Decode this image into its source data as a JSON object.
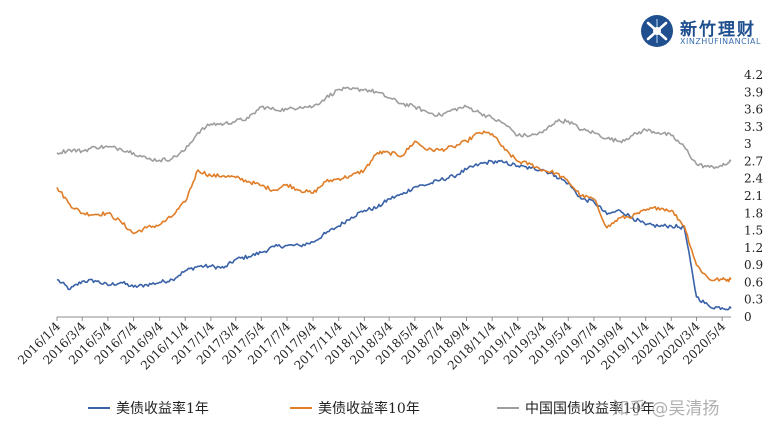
{
  "logo": {
    "name_cn": "新竹理财",
    "name_en": "XINZHUFINANCIAL"
  },
  "watermark": "知乎 @吴清扬",
  "chart_data": {
    "type": "line",
    "title": "",
    "xlabel": "",
    "ylabel": "",
    "ylim": [
      0,
      4.2
    ],
    "y_ticks": [
      "0",
      "0.3",
      "0.6",
      "0.9",
      "1.2",
      "1.5",
      "1.8",
      "2.1",
      "2.4",
      "2.7",
      "3",
      "3.3",
      "3.6",
      "3.9",
      "4.2"
    ],
    "y_axis_side": "right",
    "grid": false,
    "legend_position": "bottom",
    "x_ticks": [
      "2016/1/4",
      "2016/3/4",
      "2016/5/4",
      "2016/7/4",
      "2016/9/4",
      "2016/11/4",
      "2017/1/4",
      "2017/3/4",
      "2017/5/4",
      "2017/7/4",
      "2017/9/4",
      "2017/11/4",
      "2018/1/4",
      "2018/3/4",
      "2018/5/4",
      "2018/7/4",
      "2018/9/4",
      "2018/11/4",
      "2019/1/4",
      "2019/3/4",
      "2019/5/4",
      "2019/7/4",
      "2019/9/4",
      "2019/11/4",
      "2020/1/4",
      "2020/3/4",
      "2020/5/4"
    ],
    "x": [
      "2016/1/4",
      "2016/2/4",
      "2016/3/4",
      "2016/4/4",
      "2016/5/4",
      "2016/6/4",
      "2016/7/4",
      "2016/8/4",
      "2016/9/4",
      "2016/10/4",
      "2016/11/4",
      "2016/12/4",
      "2017/1/4",
      "2017/2/4",
      "2017/3/4",
      "2017/4/4",
      "2017/5/4",
      "2017/6/4",
      "2017/7/4",
      "2017/8/4",
      "2017/9/4",
      "2017/10/4",
      "2017/11/4",
      "2017/12/4",
      "2018/1/4",
      "2018/2/4",
      "2018/3/4",
      "2018/4/4",
      "2018/5/4",
      "2018/6/4",
      "2018/7/4",
      "2018/8/4",
      "2018/9/4",
      "2018/10/4",
      "2018/11/4",
      "2018/12/4",
      "2019/1/4",
      "2019/2/4",
      "2019/3/4",
      "2019/4/4",
      "2019/5/4",
      "2019/6/4",
      "2019/7/4",
      "2019/8/4",
      "2019/9/4",
      "2019/10/4",
      "2019/11/4",
      "2019/12/4",
      "2020/1/4",
      "2020/2/4",
      "2020/3/4",
      "2020/4/4",
      "2020/5/4",
      "2020/5/25"
    ],
    "series": [
      {
        "name": "美债收益率1年",
        "color": "#3a62a8",
        "values": [
          0.65,
          0.48,
          0.62,
          0.63,
          0.55,
          0.6,
          0.52,
          0.56,
          0.6,
          0.65,
          0.8,
          0.88,
          0.88,
          0.85,
          1.0,
          1.05,
          1.12,
          1.22,
          1.24,
          1.24,
          1.3,
          1.45,
          1.58,
          1.73,
          1.85,
          1.9,
          2.05,
          2.13,
          2.26,
          2.3,
          2.38,
          2.44,
          2.56,
          2.65,
          2.7,
          2.68,
          2.62,
          2.58,
          2.56,
          2.45,
          2.32,
          2.05,
          2.0,
          1.78,
          1.85,
          1.72,
          1.6,
          1.58,
          1.58,
          1.55,
          0.35,
          0.18,
          0.16,
          0.15
        ]
      },
      {
        "name": "美债收益率10年",
        "color": "#e07d27",
        "values": [
          2.25,
          1.95,
          1.8,
          1.78,
          1.8,
          1.65,
          1.45,
          1.55,
          1.6,
          1.75,
          2.0,
          2.55,
          2.45,
          2.45,
          2.42,
          2.35,
          2.28,
          2.2,
          2.3,
          2.2,
          2.15,
          2.35,
          2.4,
          2.45,
          2.55,
          2.85,
          2.85,
          2.8,
          3.05,
          2.9,
          2.9,
          2.95,
          3.05,
          3.2,
          3.18,
          2.9,
          2.7,
          2.65,
          2.55,
          2.5,
          2.35,
          2.1,
          2.05,
          1.55,
          1.72,
          1.75,
          1.85,
          1.9,
          1.85,
          1.58,
          0.9,
          0.65,
          0.65,
          0.65
        ]
      },
      {
        "name": "中国国债收益率10年",
        "color": "#9e9e9e",
        "values": [
          2.85,
          2.9,
          2.88,
          2.95,
          2.95,
          2.92,
          2.85,
          2.75,
          2.72,
          2.75,
          2.9,
          3.2,
          3.35,
          3.35,
          3.4,
          3.45,
          3.65,
          3.6,
          3.6,
          3.65,
          3.65,
          3.8,
          3.95,
          3.95,
          3.95,
          3.9,
          3.8,
          3.7,
          3.65,
          3.55,
          3.5,
          3.6,
          3.65,
          3.55,
          3.45,
          3.35,
          3.15,
          3.15,
          3.2,
          3.4,
          3.4,
          3.25,
          3.2,
          3.1,
          3.05,
          3.15,
          3.25,
          3.2,
          3.15,
          2.95,
          2.65,
          2.6,
          2.62,
          2.7
        ]
      }
    ]
  }
}
